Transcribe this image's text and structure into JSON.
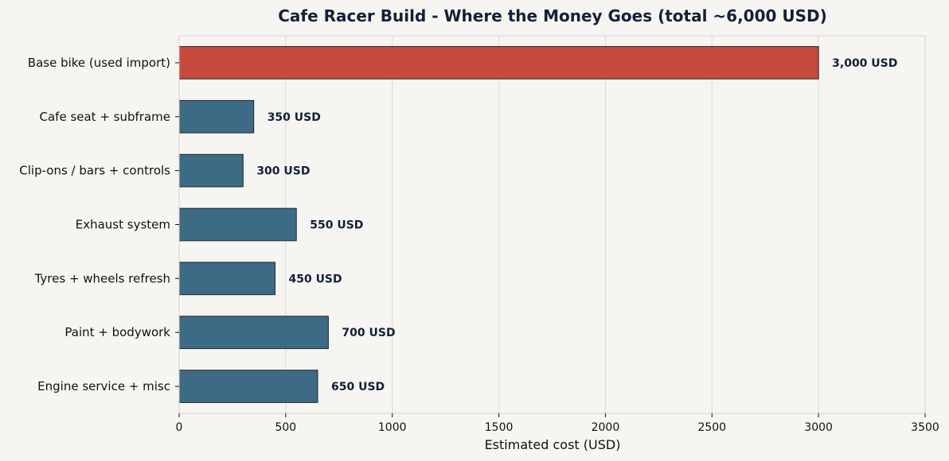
{
  "chart_data": {
    "type": "bar",
    "orientation": "horizontal",
    "title": "Cafe Racer Build - Where the Money Goes  (total ~6,000 USD)",
    "xlabel": "Estimated cost (USD)",
    "ylabel": "",
    "xlim": [
      0,
      3500
    ],
    "xticks": [
      0,
      500,
      1000,
      1500,
      2000,
      2500,
      3000,
      3500
    ],
    "grid": "vertical",
    "categories": [
      "Base bike (used import)",
      "Cafe seat + subframe",
      "Clip-ons / bars + controls",
      "Exhaust system",
      "Tyres + wheels refresh",
      "Paint + bodywork",
      "Engine service + misc"
    ],
    "values": [
      3000,
      350,
      300,
      550,
      450,
      700,
      650
    ],
    "data_labels": [
      "3,000 USD",
      "350 USD",
      "300 USD",
      "550 USD",
      "450 USD",
      "700 USD",
      "650 USD"
    ],
    "highlight_index": 0,
    "colors": {
      "background": "#f6f5f1",
      "bar": "#3d6a84",
      "highlight": "#c74a3e",
      "bar_edge": "#1c2530",
      "grid": "#dcdad4",
      "frame": "#d6d4ce",
      "text": "#111111",
      "title": "#13203a",
      "data_label": "#13203a"
    }
  }
}
